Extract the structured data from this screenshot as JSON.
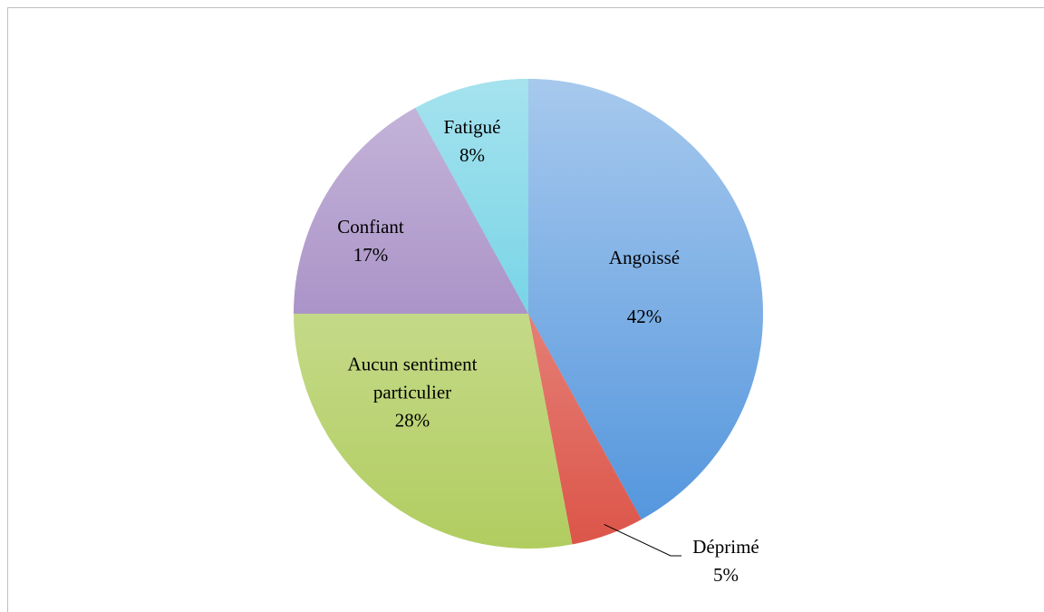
{
  "chart_data": {
    "type": "pie",
    "categories": [
      "Angoissé",
      "Déprimé",
      "Aucun sentiment particulier",
      "Confiant",
      "Fatigué"
    ],
    "values": [
      42,
      5,
      28,
      17,
      8
    ],
    "value_labels": [
      "42%",
      "5%",
      "28%",
      "17%",
      "8%"
    ],
    "colors": [
      "#4f93dc",
      "#dc5448",
      "#b1cd60",
      "#8f70b6",
      "#4cc6de"
    ]
  }
}
